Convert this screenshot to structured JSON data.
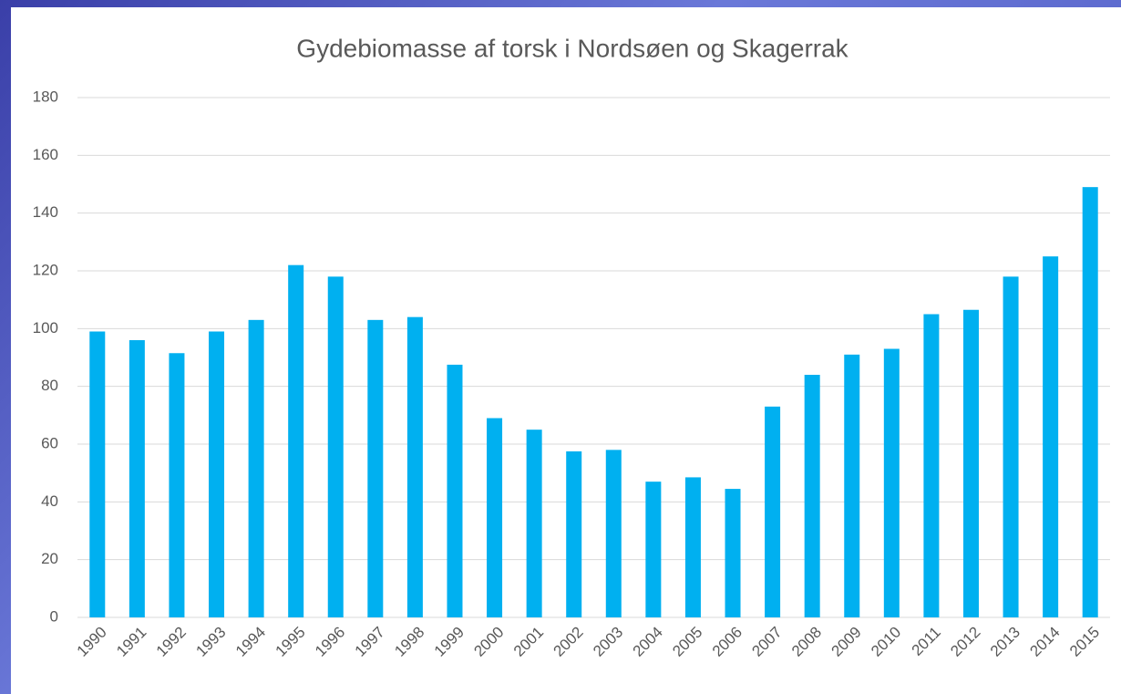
{
  "chart_data": {
    "type": "bar",
    "title": "Gydebiomasse af torsk i Nordsøen og Skagerrak",
    "categories": [
      "1990",
      "1991",
      "1992",
      "1993",
      "1994",
      "1995",
      "1996",
      "1997",
      "1998",
      "1999",
      "2000",
      "2001",
      "2002",
      "2003",
      "2004",
      "2005",
      "2006",
      "2007",
      "2008",
      "2009",
      "2010",
      "2011",
      "2012",
      "2013",
      "2014",
      "2015"
    ],
    "values": [
      99,
      96,
      91.5,
      99,
      103,
      122,
      118,
      103,
      104,
      87.5,
      69,
      65,
      57.5,
      58,
      47,
      48.5,
      44.5,
      73,
      84,
      91,
      93,
      105,
      106.5,
      118,
      125,
      149
    ],
    "color": "#00b0f0",
    "ylim": [
      0,
      180
    ],
    "yticks": [
      0,
      20,
      40,
      60,
      80,
      100,
      120,
      140,
      160,
      180
    ],
    "grid": true
  }
}
